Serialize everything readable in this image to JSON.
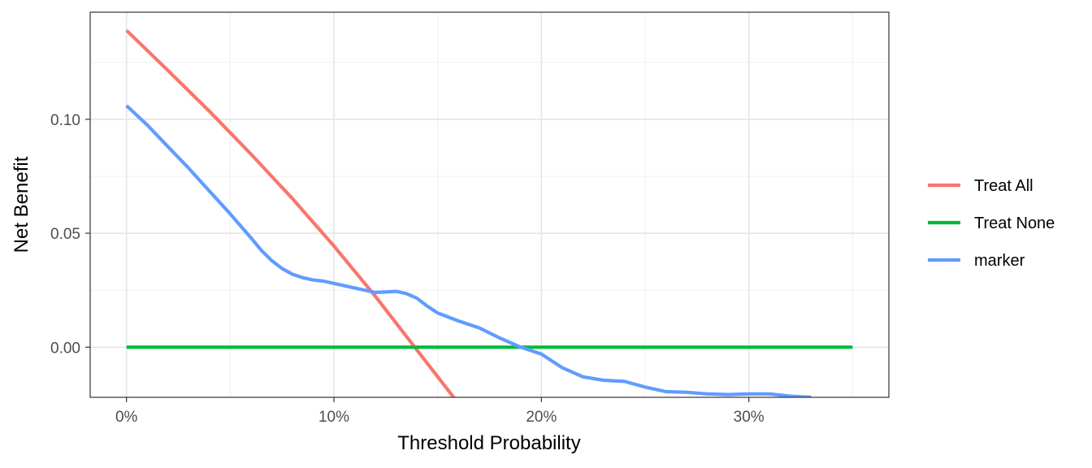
{
  "chart_data": {
    "type": "line",
    "title": "",
    "xlabel": "Threshold Probability",
    "ylabel": "Net Benefit",
    "xlim": [
      -0.0175,
      0.3675
    ],
    "ylim": [
      -0.022,
      0.147
    ],
    "x_ticks": [
      0,
      0.1,
      0.2,
      0.3
    ],
    "x_tick_labels": [
      "0%",
      "10%",
      "20%",
      "30%"
    ],
    "y_ticks": [
      0.0,
      0.05,
      0.1
    ],
    "y_tick_labels": [
      "0.00",
      "0.05",
      "0.10"
    ],
    "grid": true,
    "legend_position": "right",
    "series": [
      {
        "name": "Treat All",
        "color": "#F8766D",
        "x": [
          0,
          0.02,
          0.04,
          0.06,
          0.08,
          0.1,
          0.12,
          0.14,
          0.16
        ],
        "y": [
          0.139,
          0.1214,
          0.1035,
          0.0847,
          0.0652,
          0.0444,
          0.0223,
          -0.0012,
          -0.0247
        ]
      },
      {
        "name": "Treat None",
        "color": "#00BA38",
        "x": [
          0,
          0.35
        ],
        "y": [
          0,
          0
        ]
      },
      {
        "name": "marker",
        "color": "#619CFF",
        "x": [
          0,
          0.01,
          0.02,
          0.03,
          0.04,
          0.05,
          0.06,
          0.065,
          0.07,
          0.075,
          0.08,
          0.085,
          0.09,
          0.095,
          0.1,
          0.11,
          0.12,
          0.13,
          0.135,
          0.14,
          0.145,
          0.15,
          0.16,
          0.17,
          0.18,
          0.19,
          0.2,
          0.21,
          0.22,
          0.23,
          0.24,
          0.25,
          0.26,
          0.27,
          0.28,
          0.29,
          0.3,
          0.31,
          0.32,
          0.33
        ],
        "y": [
          0.106,
          0.0975,
          0.088,
          0.0785,
          0.0685,
          0.0585,
          0.048,
          0.0425,
          0.038,
          0.0345,
          0.032,
          0.0305,
          0.0295,
          0.029,
          0.028,
          0.026,
          0.024,
          0.0245,
          0.0235,
          0.0215,
          0.018,
          0.015,
          0.0115,
          0.0085,
          0.004,
          0.0,
          -0.003,
          -0.009,
          -0.013,
          -0.0145,
          -0.015,
          -0.0175,
          -0.0195,
          -0.0198,
          -0.0205,
          -0.0208,
          -0.0205,
          -0.0205,
          -0.0215,
          -0.022
        ]
      }
    ]
  }
}
